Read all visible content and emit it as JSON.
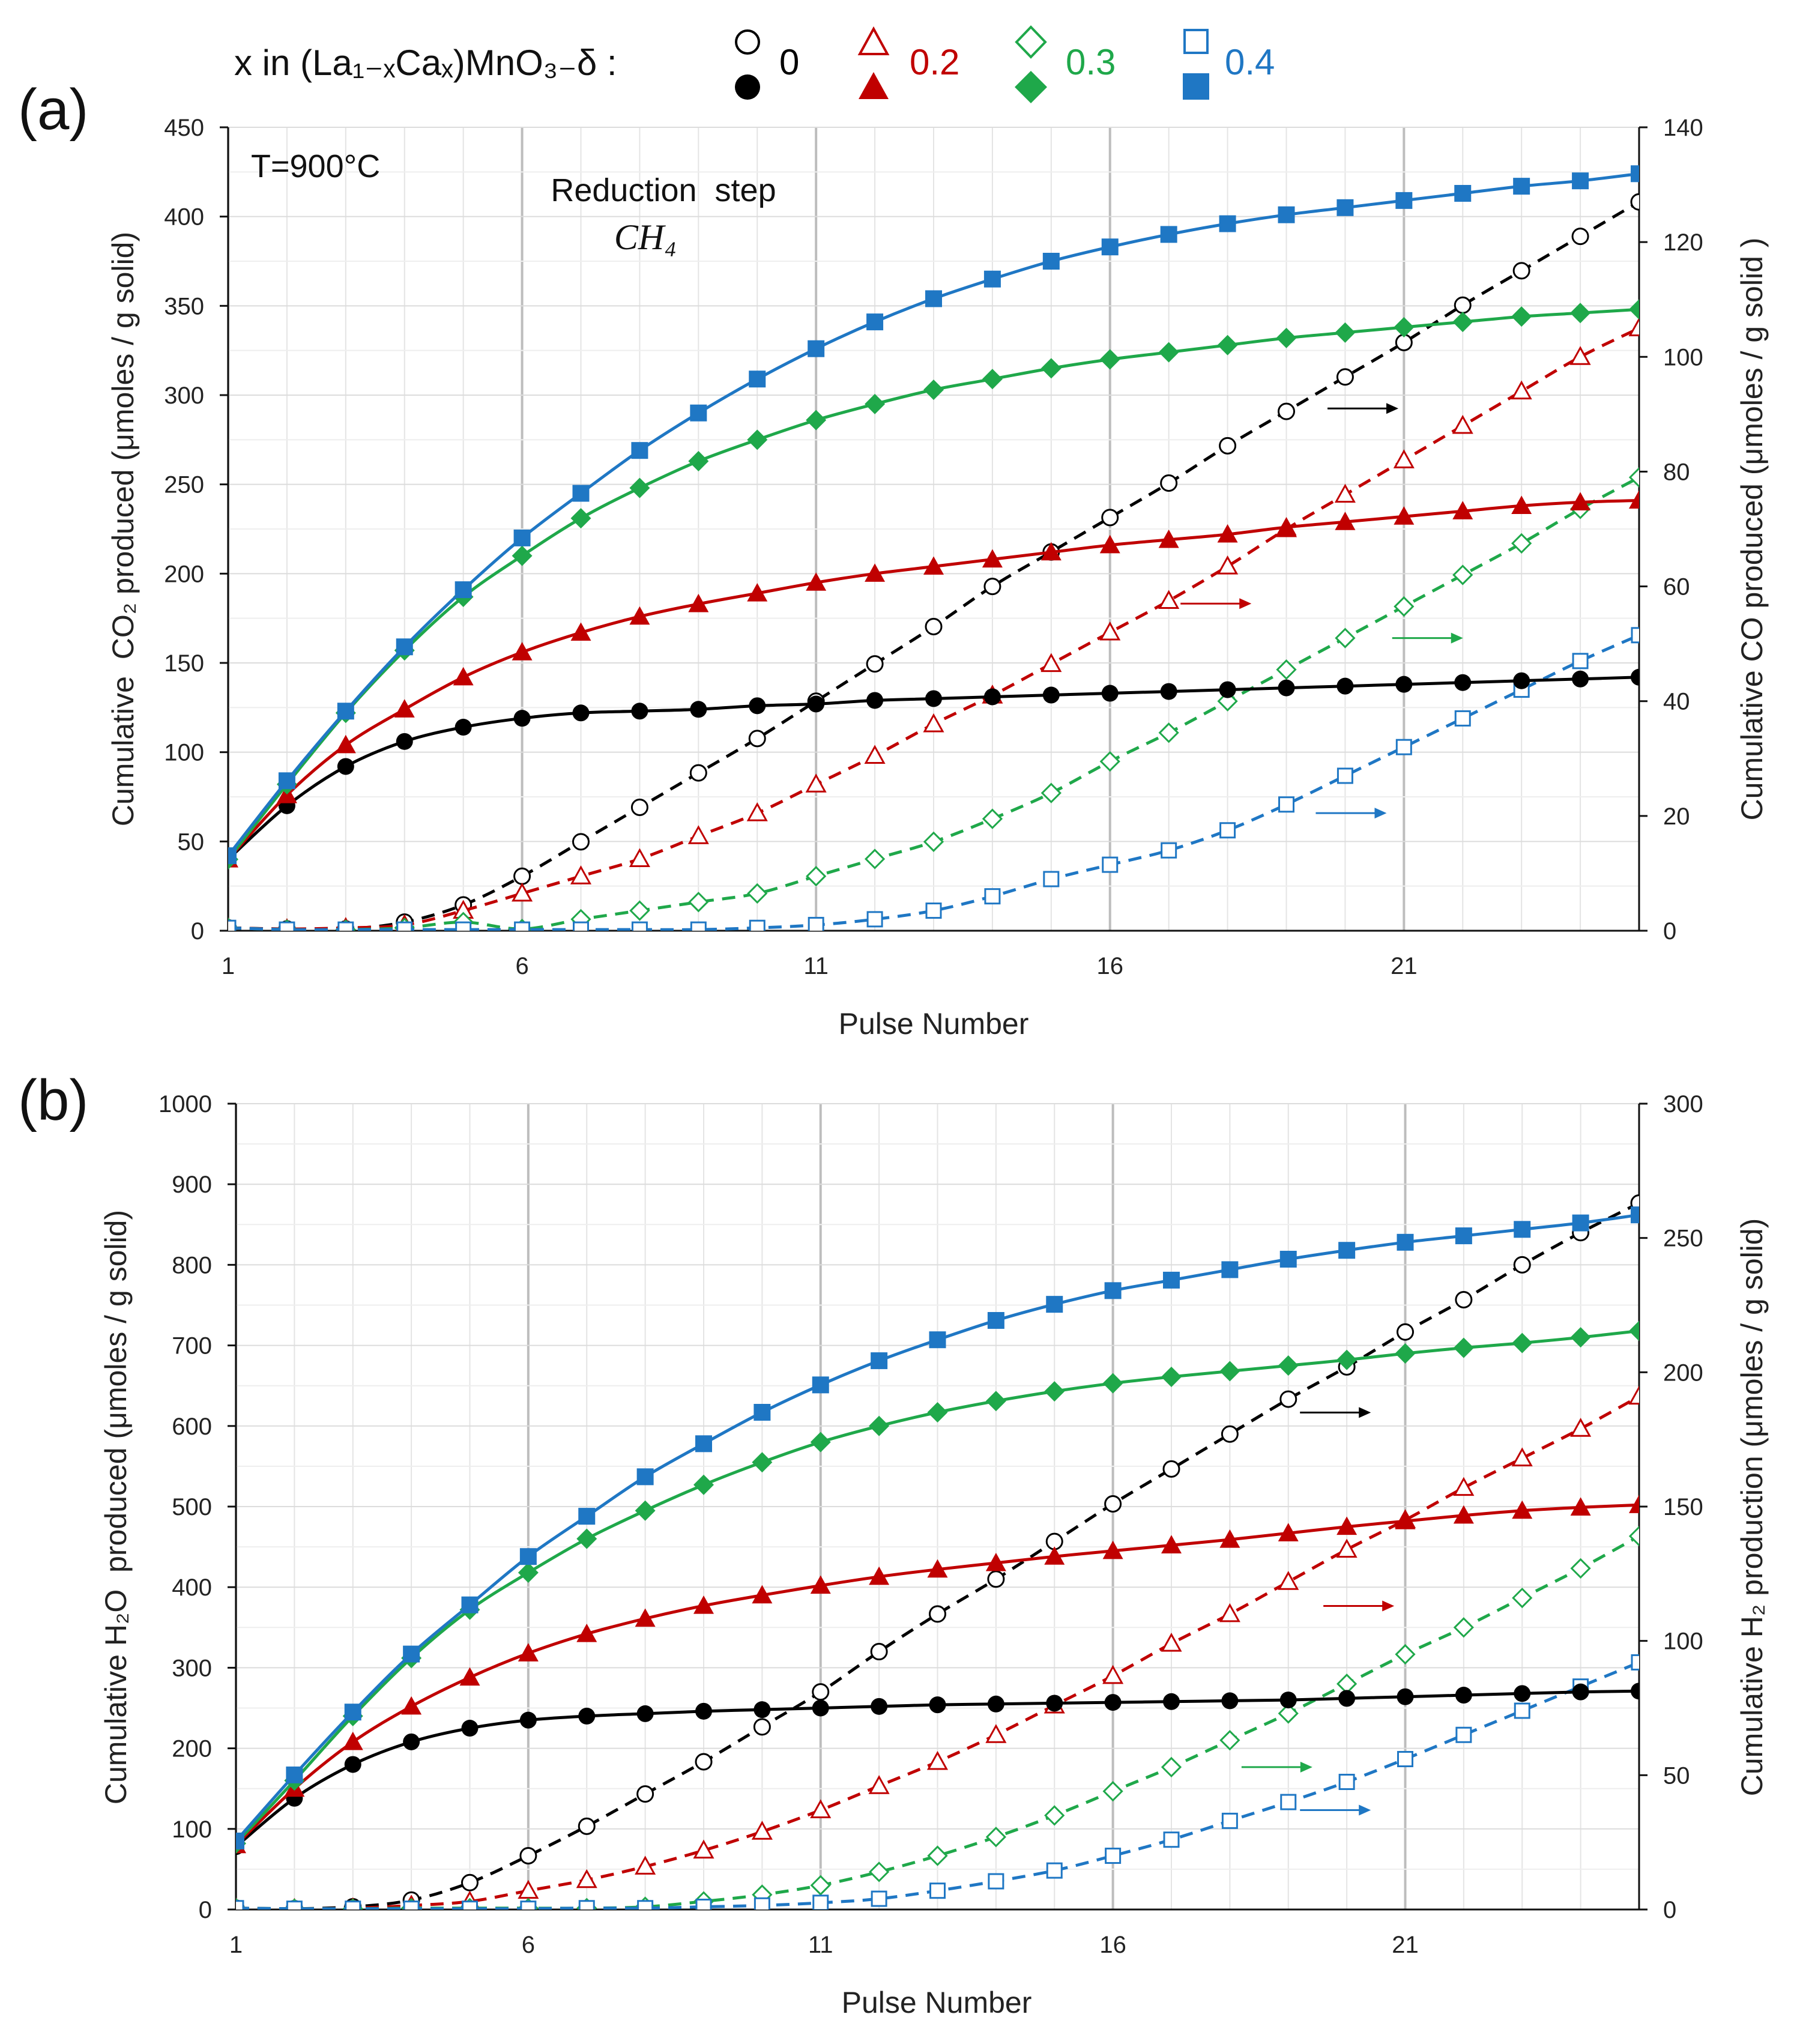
{
  "legend": {
    "title": "x in (La₁₋ₓCaₓ)MnO₃₋δ :",
    "entries": [
      {
        "label": "0",
        "color": "#000000"
      },
      {
        "label": "0.2",
        "color": "#c00000"
      },
      {
        "label": "0.3",
        "color": "#1fa84a"
      },
      {
        "label": "0.4",
        "color": "#1f77c4"
      }
    ]
  },
  "chart_data": [
    {
      "type": "line",
      "panel_label": "(a)",
      "annotations": [
        "T=900°C",
        "Reduction  step",
        "CH₄"
      ],
      "xlabel": "Pulse Number",
      "ylabel_left": "Cumulative  CO₂ produced (μmoles / g solid)",
      "ylabel_right": "Cumulative CO produced (μmoles / g solid )",
      "xlim": [
        1,
        25
      ],
      "ylim_left": [
        0,
        450
      ],
      "ylim_right": [
        0,
        140
      ],
      "xticks": [
        1,
        6,
        11,
        16,
        21
      ],
      "yticks_left": [
        0,
        50,
        100,
        150,
        200,
        250,
        300,
        350,
        400,
        450
      ],
      "yticks_right": [
        0,
        20,
        40,
        60,
        80,
        100,
        120,
        140
      ],
      "x": [
        1,
        2,
        3,
        4,
        5,
        6,
        7,
        8,
        9,
        10,
        11,
        12,
        13,
        14,
        15,
        16,
        17,
        18,
        19,
        20,
        21,
        22,
        23,
        24,
        25
      ],
      "series": [
        {
          "name": "x=0 CO2",
          "color": "#000000",
          "axis": "left",
          "marker": "filled-circle",
          "style": "solid",
          "values": [
            40,
            70,
            92,
            106,
            114,
            119,
            122,
            123,
            124,
            126,
            127,
            129,
            130,
            131,
            132,
            133,
            134,
            135,
            136,
            137,
            138,
            139,
            140,
            141,
            142
          ]
        },
        {
          "name": "x=0.2 CO2",
          "color": "#c00000",
          "axis": "left",
          "marker": "filled-triangle",
          "style": "solid",
          "values": [
            40,
            76,
            104,
            124,
            142,
            156,
            167,
            176,
            183,
            189,
            195,
            200,
            204,
            208,
            212,
            216,
            219,
            222,
            226,
            229,
            232,
            235,
            238,
            240,
            241
          ]
        },
        {
          "name": "x=0.3 CO2",
          "color": "#1fa84a",
          "axis": "left",
          "marker": "filled-diamond",
          "style": "solid",
          "values": [
            40,
            82,
            122,
            157,
            187,
            210,
            231,
            248,
            263,
            275,
            286,
            295,
            303,
            309,
            315,
            320,
            324,
            328,
            332,
            335,
            338,
            341,
            344,
            346,
            348
          ]
        },
        {
          "name": "x=0.4 CO2",
          "color": "#1f77c4",
          "axis": "left",
          "marker": "filled-square",
          "style": "solid",
          "values": [
            42,
            84,
            123,
            159,
            191,
            220,
            245,
            269,
            290,
            309,
            326,
            341,
            354,
            365,
            375,
            383,
            390,
            396,
            401,
            405,
            409,
            413,
            417,
            420,
            424
          ]
        },
        {
          "name": "x=0 CO",
          "color": "#000000",
          "axis": "right",
          "marker": "open-circle",
          "style": "dashed",
          "values": [
            0.5,
            0.3,
            0.3,
            1.5,
            4.5,
            9.5,
            15.5,
            21.5,
            27.5,
            33.5,
            40,
            46.5,
            53,
            60,
            66,
            72,
            78,
            84.5,
            90.5,
            96.5,
            102.5,
            109,
            115,
            121,
            127
          ]
        },
        {
          "name": "x=0.2 CO",
          "color": "#c00000",
          "axis": "right",
          "marker": "open-triangle",
          "style": "dashed",
          "values": [
            0.5,
            0.3,
            0.5,
            1,
            3.5,
            6.5,
            9.5,
            12.5,
            16.5,
            20.5,
            25.5,
            30.5,
            36,
            41,
            46.5,
            52,
            57.5,
            63.5,
            70,
            76,
            82,
            88,
            94,
            100,
            105
          ]
        },
        {
          "name": "x=0.3 CO",
          "color": "#1fa84a",
          "axis": "right",
          "marker": "open-diamond",
          "style": "dashed",
          "values": [
            0.5,
            0.2,
            0.2,
            0.5,
            1.5,
            0.3,
            2,
            3.5,
            5,
            6.5,
            9.5,
            12.5,
            15.5,
            19.5,
            24,
            29.5,
            34.5,
            40,
            45.5,
            51,
            56.5,
            62,
            67.5,
            73.5,
            79
          ]
        },
        {
          "name": "x=0.4 CO",
          "color": "#1f77c4",
          "axis": "right",
          "marker": "open-square",
          "style": "dashed",
          "values": [
            0.5,
            0.2,
            0.2,
            0.2,
            0.2,
            0.2,
            0.2,
            0.2,
            0.2,
            0.5,
            1,
            2,
            3.5,
            6,
            9,
            11.5,
            14,
            17.5,
            22,
            27,
            32,
            37,
            42,
            47,
            51.5
          ]
        }
      ],
      "arrows": [
        {
          "series": "x=0 CO",
          "x": 19.7,
          "y": 91
        },
        {
          "series": "x=0.2 CO",
          "x": 17.2,
          "y": 57
        },
        {
          "series": "x=0.3 CO",
          "x": 20.8,
          "y": 51
        },
        {
          "series": "x=0.4 CO",
          "x": 19.5,
          "y": 20.5
        }
      ]
    },
    {
      "type": "line",
      "panel_label": "(b)",
      "xlabel": "Pulse Number",
      "ylabel_left": "Cumulative H₂O  produced (μmoles / g solid)",
      "ylabel_right": "Cumulative H₂ production (μmoles / g solid)",
      "xlim": [
        1,
        25
      ],
      "ylim_left": [
        0,
        1000
      ],
      "ylim_right": [
        0,
        300
      ],
      "xticks": [
        1,
        6,
        11,
        16,
        21
      ],
      "yticks_left": [
        0,
        100,
        200,
        300,
        400,
        500,
        600,
        700,
        800,
        900,
        1000
      ],
      "yticks_right": [
        0,
        50,
        100,
        150,
        200,
        250,
        300
      ],
      "x": [
        1,
        2,
        3,
        4,
        5,
        6,
        7,
        8,
        9,
        10,
        11,
        12,
        13,
        14,
        15,
        16,
        17,
        18,
        19,
        20,
        21,
        22,
        23,
        24,
        25
      ],
      "series": [
        {
          "name": "x=0 H2O",
          "color": "#000000",
          "axis": "left",
          "marker": "filled-circle",
          "style": "solid",
          "values": [
            78,
            138,
            180,
            208,
            225,
            235,
            240,
            243,
            246,
            248,
            250,
            252,
            254,
            255,
            256,
            257,
            258,
            259,
            260,
            262,
            264,
            266,
            268,
            270,
            271
          ]
        },
        {
          "name": "x=0.2 H2O",
          "color": "#c00000",
          "axis": "left",
          "marker": "filled-triangle",
          "style": "solid",
          "values": [
            80,
            150,
            208,
            252,
            288,
            318,
            342,
            361,
            377,
            390,
            402,
            413,
            422,
            430,
            438,
            445,
            452,
            459,
            467,
            475,
            482,
            489,
            495,
            499,
            502
          ]
        },
        {
          "name": "x=0.3 H2O",
          "color": "#1fa84a",
          "axis": "left",
          "marker": "filled-diamond",
          "style": "solid",
          "values": [
            82,
            160,
            240,
            312,
            372,
            418,
            460,
            495,
            527,
            555,
            580,
            600,
            617,
            631,
            643,
            653,
            661,
            668,
            675,
            682,
            690,
            697,
            703,
            710,
            718
          ]
        },
        {
          "name": "x=0.4 H2O",
          "color": "#1f77c4",
          "axis": "left",
          "marker": "filled-square",
          "style": "solid",
          "values": [
            85,
            167,
            245,
            317,
            378,
            438,
            488,
            537,
            578,
            617,
            651,
            681,
            707,
            731,
            751,
            768,
            781,
            794,
            807,
            818,
            828,
            836,
            844,
            852,
            862
          ]
        },
        {
          "name": "x=0 H2",
          "color": "#000000",
          "axis": "right",
          "marker": "open-circle",
          "style": "dashed",
          "values": [
            0.5,
            0.3,
            1,
            3.5,
            10,
            20,
            31,
            43,
            55,
            68,
            81,
            96,
            110,
            123,
            137,
            151,
            164,
            177,
            190,
            202,
            215,
            227,
            240,
            252,
            263
          ]
        },
        {
          "name": "x=0.2 H2",
          "color": "#c00000",
          "axis": "right",
          "marker": "open-triangle",
          "style": "dashed",
          "values": [
            0.5,
            0.3,
            0.5,
            1.5,
            3,
            7,
            11,
            16,
            22,
            29,
            37,
            46,
            55,
            65,
            76,
            87,
            99,
            110,
            122,
            134,
            145,
            157,
            168,
            179,
            191
          ]
        },
        {
          "name": "x=0.3 H2",
          "color": "#1fa84a",
          "axis": "right",
          "marker": "open-diamond",
          "style": "dashed",
          "values": [
            0.5,
            0.3,
            0.3,
            0.5,
            0.5,
            0.5,
            0.5,
            1,
            3,
            5.5,
            9,
            14,
            20,
            27,
            35,
            44,
            53,
            63,
            73,
            84,
            95,
            105,
            116,
            127,
            139
          ]
        },
        {
          "name": "x=0.4 H2",
          "color": "#1f77c4",
          "axis": "right",
          "marker": "open-square",
          "style": "dashed",
          "values": [
            0.5,
            0.3,
            0.3,
            0.3,
            0.3,
            0.3,
            0.5,
            0.5,
            1,
            1.5,
            2.5,
            4,
            7,
            10.5,
            14.5,
            20,
            26,
            33,
            40,
            47.5,
            56,
            65,
            74,
            83,
            92
          ]
        }
      ],
      "arrows": [
        {
          "series": "x=0 H2",
          "x": 19.2,
          "y": 185
        },
        {
          "series": "x=0.2 H2",
          "x": 19.6,
          "y": 113
        },
        {
          "series": "x=0.3 H2",
          "x": 18.2,
          "y": 53
        },
        {
          "series": "x=0.4 H2",
          "x": 19.2,
          "y": 37
        }
      ]
    }
  ]
}
